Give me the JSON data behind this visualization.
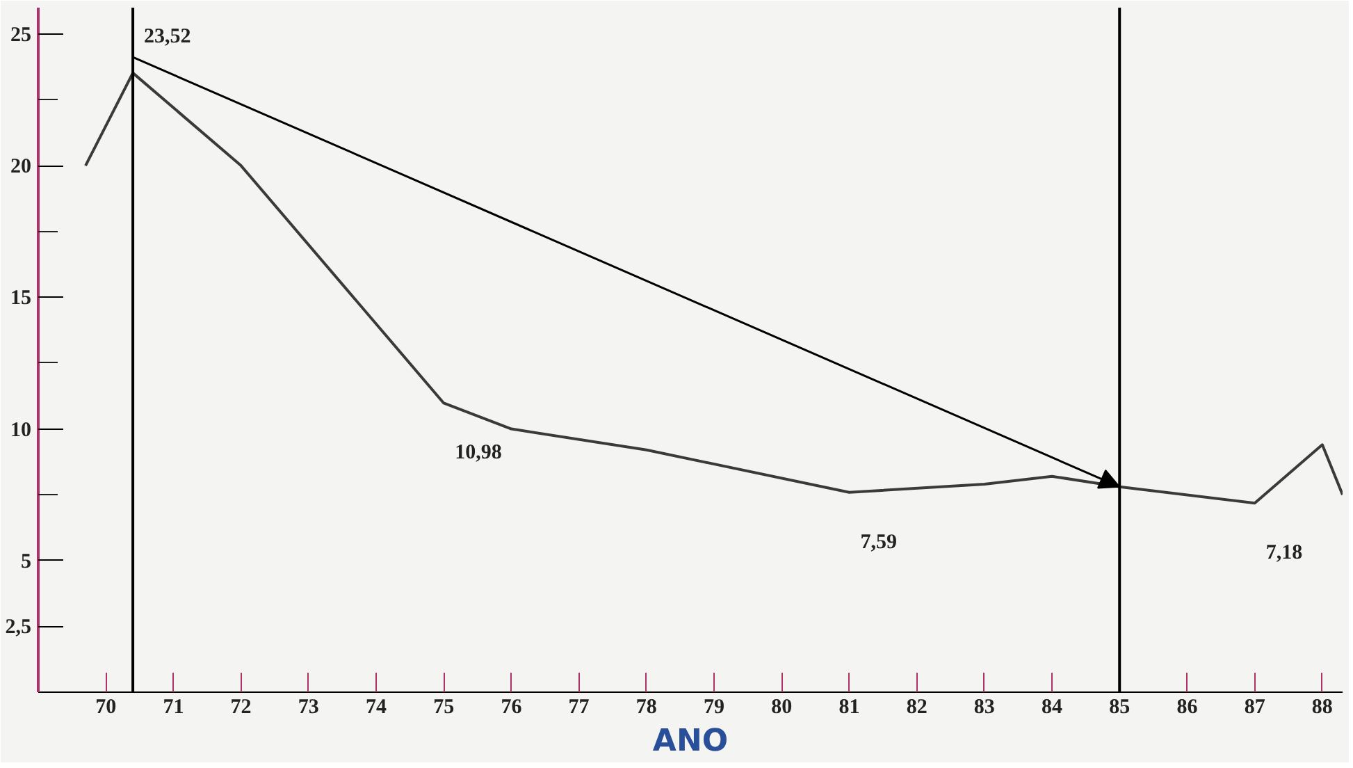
{
  "chart_data": {
    "type": "line",
    "xlabel": "ANO",
    "x": [
      69.7,
      70.4,
      72,
      75,
      76,
      78,
      81,
      83,
      84,
      85,
      87,
      88,
      88.3
    ],
    "series": [
      {
        "color": "#3a3a3a",
        "values": [
          20,
          23.52,
          20,
          10.98,
          10,
          9.2,
          7.59,
          7.9,
          8.2,
          7.8,
          7.18,
          9.4,
          7.5
        ]
      }
    ],
    "xlim": [
      69,
      88.3
    ],
    "ylim": [
      0,
      26
    ],
    "xticks": [
      70,
      71,
      72,
      73,
      74,
      75,
      76,
      77,
      78,
      79,
      80,
      81,
      82,
      83,
      84,
      85,
      86,
      87,
      88
    ],
    "yticks": [
      {
        "value": 2.5,
        "label": "2,5"
      },
      5,
      {
        "value": 7.5,
        "label": null
      },
      10,
      {
        "value": 12.5,
        "label": null
      },
      15,
      {
        "value": 17.5,
        "label": null
      },
      20,
      {
        "value": 22.5,
        "label": null
      },
      25
    ],
    "ref_lines": [
      {
        "axis": "x",
        "value": 70.4,
        "color": "#000000"
      },
      {
        "axis": "x",
        "value": 85,
        "color": "#000000"
      }
    ],
    "annotations": [
      {
        "text": "23,52",
        "x": 70.4,
        "y": 23.52
      },
      {
        "text": "10,98",
        "x": 75,
        "y": 10.98
      },
      {
        "text": "7,59",
        "x": 81,
        "y": 7.59
      },
      {
        "text": "7,18",
        "x": 87,
        "y": 7.18
      }
    ],
    "grid": false,
    "marker": "none",
    "line_style": "solid"
  }
}
